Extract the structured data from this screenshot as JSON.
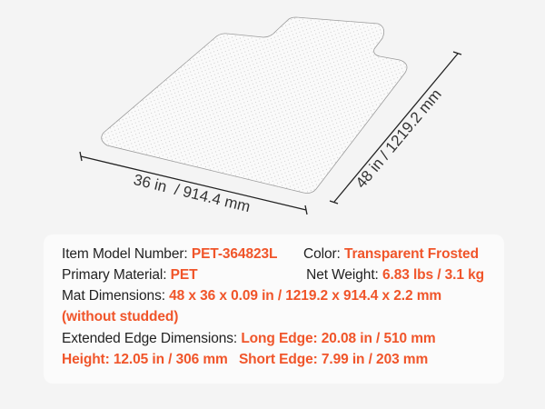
{
  "dimensions": {
    "width_label": "36 in  / 914.4 mm",
    "length_label": "48 in / 1219.2 mm"
  },
  "specs": {
    "model": {
      "label": "Item Model Number:",
      "value": "PET-364823L"
    },
    "color": {
      "label": "Color:",
      "value": "Transparent Frosted"
    },
    "material": {
      "label": "Primary Material:",
      "value": "PET"
    },
    "weight": {
      "label": "Net Weight:",
      "value": "6.83 lbs / 3.1 kg"
    },
    "mat_dimensions": {
      "label": "Mat Dimensions:",
      "value": "48 x 36 x 0.09 in / 1219.2 x 914.4 x 2.2 mm",
      "note": "(without studded)"
    },
    "extended": {
      "label": "Extended Edge Dimensions:",
      "long_edge": "Long Edge: 20.08 in / 510 mm",
      "height": "Height: 12.05 in / 306 mm",
      "short_edge": "Short Edge: 7.99 in / 203 mm"
    }
  },
  "colors": {
    "accent": "#f0552a",
    "text": "#222222",
    "background": "#f4f4f4"
  }
}
